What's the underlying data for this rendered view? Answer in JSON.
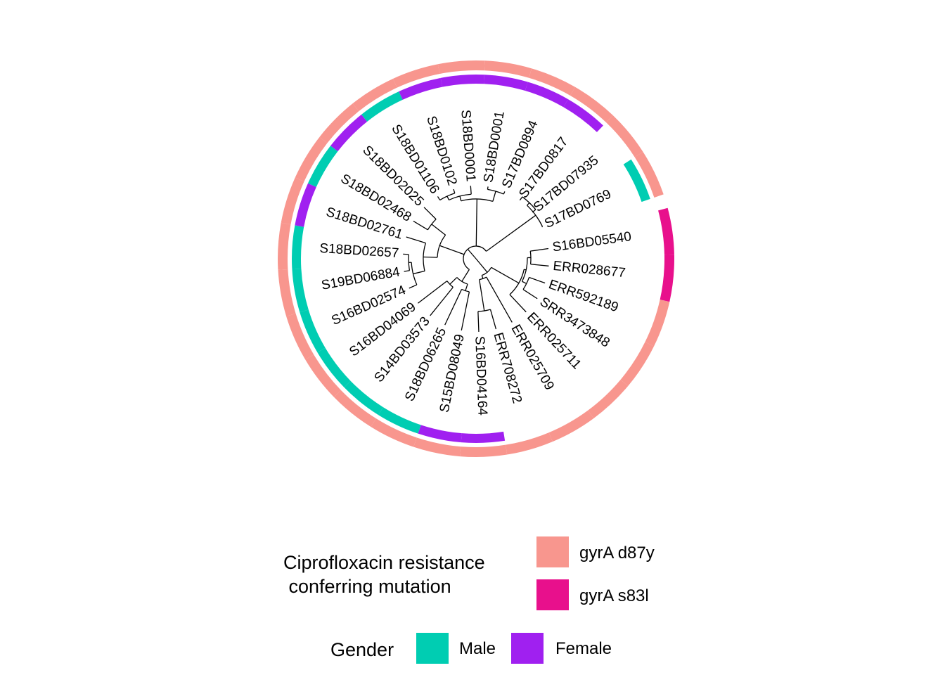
{
  "tree": {
    "tips": [
      "S16BD05540",
      "ERR028677",
      "ERR592189",
      "SRR3473848",
      "ERR025711",
      "ERR025709",
      "ERR708272",
      "S16BD04164",
      "S15BD08049",
      "S18BD06265",
      "S14BD03573",
      "S16BD04069",
      "S16BD02574",
      "S19BD06884",
      "S18BD02657",
      "S18BD02761",
      "S18BD02468",
      "S18BD02025",
      "S18BD01106",
      "S18BD0102",
      "S18BD0001",
      "S18BD0001",
      "S17BD0894",
      "S17BD0817",
      "S17BD07935",
      "S17BD0769"
    ]
  },
  "rings": {
    "gender": [
      "",
      "",
      "",
      "",
      "",
      "",
      "",
      "Female",
      "Female",
      "Male",
      "Male",
      "Male",
      "Male",
      "Male",
      "Male",
      "Female",
      "Male",
      "Female",
      "Male",
      "Female",
      "Female",
      "Female",
      "Female",
      "Female",
      "",
      "Male"
    ],
    "mutation": [
      "gyrA s83l",
      "gyrA s83l",
      "gyrA d87y",
      "gyrA d87y",
      "gyrA d87y",
      "gyrA d87y",
      "gyrA d87y",
      "gyrA d87y",
      "gyrA d87y",
      "gyrA d87y",
      "gyrA d87y",
      "gyrA d87y",
      "gyrA d87y",
      "gyrA d87y",
      "gyrA d87y",
      "gyrA d87y",
      "gyrA d87y",
      "gyrA d87y",
      "gyrA d87y",
      "gyrA d87y",
      "gyrA d87y",
      "gyrA d87y",
      "gyrA d87y",
      "gyrA d87y",
      "gyrA d87y",
      "gyrA d87y"
    ]
  },
  "colors": {
    "gyrA d87y": "#F8968E",
    "gyrA s83l": "#E8108C",
    "Male": "#00CDB2",
    "Female": "#A020F0"
  },
  "legend": {
    "mutation": {
      "title": "Ciprofloxacin resistance\n conferring mutation",
      "items": [
        {
          "label": "gyrA d87y",
          "color": "#F8968E"
        },
        {
          "label": "gyrA s83l",
          "color": "#E8108C"
        }
      ]
    },
    "gender": {
      "title": "Gender",
      "items": [
        {
          "label": "Male",
          "color": "#00CDB2"
        },
        {
          "label": "Female",
          "color": "#A020F0"
        }
      ]
    }
  }
}
